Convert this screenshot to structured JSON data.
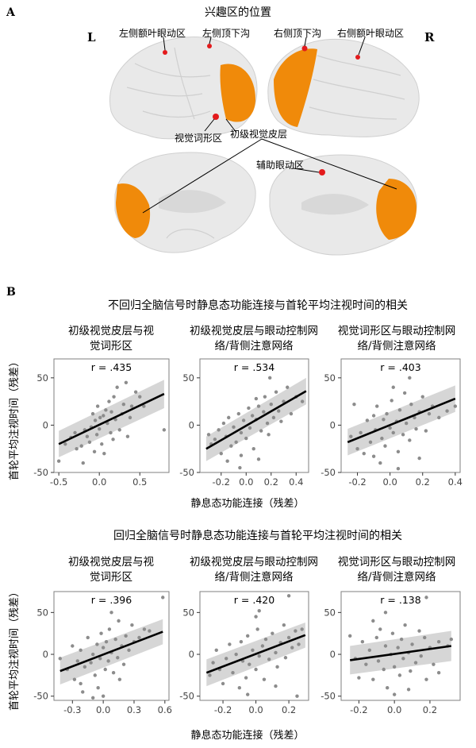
{
  "panel_a": {
    "letter": "A",
    "title": "兴趣区的位置",
    "hemisphere_left": "L",
    "hemisphere_right": "R",
    "labels": {
      "left_fef": "左侧额叶眼动区",
      "left_ips": "左侧顶下沟",
      "right_ips": "右侧顶下沟",
      "right_fef": "右侧额叶眼动区",
      "vwfa": "视觉词形区",
      "v1": "初级视觉皮层",
      "sef": "辅助眼动区"
    },
    "colors": {
      "roi_region": "#f08a0a",
      "roi_point": "#e31a1c",
      "brain": "#e9e9e9"
    }
  },
  "panel_b": {
    "letter": "B",
    "x_axis_label": "静息态功能连接（残差）",
    "y_axis_label": "首轮平均注视时间（残差）",
    "colors": {
      "point": "#8c8c8c",
      "line": "#000000",
      "ribbon": "#cfcfcf"
    }
  },
  "rows": [
    {
      "title": "不回归全脑信号时静息态功能连接与首轮平均注视时间的相关",
      "charts": [
        {
          "title_lines": [
            "初级视觉皮层与视",
            "觉词形区"
          ],
          "r_label": "r = .435"
        },
        {
          "title_lines": [
            "初级视觉皮层与眼动控制网",
            "络/背侧注意网络"
          ],
          "r_label": "r = .534"
        },
        {
          "title_lines": [
            "视觉词形区与眼动控制网",
            "络/背侧注意网络"
          ],
          "r_label": "r = .403"
        }
      ]
    },
    {
      "title": "回归全脑信号时静息态功能连接与首轮平均注视时间的相关",
      "charts": [
        {
          "title_lines": [
            "初级视觉皮层与视",
            "觉词形区"
          ],
          "r_label": "r = .396"
        },
        {
          "title_lines": [
            "初级视觉皮层与眼动控制网",
            "络/背侧注意网络"
          ],
          "r_label": "r = .420"
        },
        {
          "title_lines": [
            "视觉词形区与眼动控制网",
            "络/背侧注意网络"
          ],
          "r_label": "r = .138"
        }
      ]
    }
  ],
  "chart_data": [
    {
      "type": "scatter",
      "title": "初级视觉皮层与视觉词形区",
      "xlabel": "静息态功能连接（残差）",
      "ylabel": "首轮平均注视时间（残差）",
      "xlim": [
        -0.56,
        0.86
      ],
      "ylim": [
        -50,
        70
      ],
      "xticks": [
        -0.5,
        0.0,
        0.5
      ],
      "xtick_labels": [
        "-0.5",
        "0.0",
        "0.5"
      ],
      "yticks": [
        -50,
        0,
        50
      ],
      "ytick_labels": [
        "-50",
        "0",
        "50"
      ],
      "annotation": "r = .435",
      "fit": {
        "x": [
          -0.5,
          0.8
        ],
        "y": [
          -20,
          33
        ],
        "ci_low": [
          -34,
          18
        ],
        "ci_high": [
          -6,
          48
        ]
      },
      "points": [
        [
          -0.5,
          -38
        ],
        [
          -0.42,
          -20
        ],
        [
          -0.35,
          -13
        ],
        [
          -0.3,
          -8
        ],
        [
          -0.28,
          -25
        ],
        [
          -0.22,
          -22
        ],
        [
          -0.2,
          -40
        ],
        [
          -0.18,
          -5
        ],
        [
          -0.15,
          -12
        ],
        [
          -0.12,
          -18
        ],
        [
          -0.1,
          -2
        ],
        [
          -0.08,
          12
        ],
        [
          -0.06,
          -28
        ],
        [
          -0.05,
          5
        ],
        [
          -0.03,
          -10
        ],
        [
          -0.02,
          20
        ],
        [
          0.0,
          -4
        ],
        [
          0.01,
          8
        ],
        [
          0.03,
          -20
        ],
        [
          0.05,
          10
        ],
        [
          0.06,
          -30
        ],
        [
          0.08,
          16
        ],
        [
          0.1,
          2
        ],
        [
          0.12,
          25
        ],
        [
          0.14,
          -8
        ],
        [
          0.15,
          14
        ],
        [
          0.17,
          -15
        ],
        [
          0.18,
          30
        ],
        [
          0.2,
          6
        ],
        [
          0.22,
          40
        ],
        [
          0.25,
          -5
        ],
        [
          0.28,
          12
        ],
        [
          0.3,
          22
        ],
        [
          0.33,
          45
        ],
        [
          0.35,
          -12
        ],
        [
          0.38,
          8
        ],
        [
          0.4,
          20
        ],
        [
          0.45,
          35
        ],
        [
          0.5,
          30
        ],
        [
          0.55,
          20
        ],
        [
          0.8,
          -5
        ]
      ]
    },
    {
      "type": "scatter",
      "title": "初级视觉皮层与眼动控制网络/背侧注意网络",
      "xlabel": "静息态功能连接（残差）",
      "ylabel": "首轮平均注视时间（残差）",
      "xlim": [
        -0.37,
        0.5
      ],
      "ylim": [
        -50,
        70
      ],
      "xticks": [
        -0.2,
        0.0,
        0.2,
        0.4
      ],
      "xtick_labels": [
        "-0.2",
        "0.0",
        "0.2",
        "0.4"
      ],
      "yticks": [
        -50,
        0,
        50
      ],
      "ytick_labels": [
        "-50",
        "0",
        "50"
      ],
      "annotation": "r = .534",
      "fit": {
        "x": [
          -0.32,
          0.48
        ],
        "y": [
          -25,
          36
        ],
        "ci_low": [
          -38,
          22
        ],
        "ci_high": [
          -12,
          50
        ]
      },
      "points": [
        [
          -0.3,
          -10
        ],
        [
          -0.28,
          -20
        ],
        [
          -0.25,
          -15
        ],
        [
          -0.22,
          -5
        ],
        [
          -0.2,
          -30
        ],
        [
          -0.18,
          2
        ],
        [
          -0.16,
          -12
        ],
        [
          -0.14,
          8
        ],
        [
          -0.12,
          -22
        ],
        [
          -0.1,
          -2
        ],
        [
          -0.08,
          -18
        ],
        [
          -0.06,
          12
        ],
        [
          -0.05,
          -45
        ],
        [
          -0.04,
          -8
        ],
        [
          -0.02,
          5
        ],
        [
          0.0,
          -14
        ],
        [
          0.02,
          18
        ],
        [
          0.03,
          -3
        ],
        [
          0.05,
          10
        ],
        [
          0.06,
          -25
        ],
        [
          0.08,
          6
        ],
        [
          0.1,
          20
        ],
        [
          0.12,
          -6
        ],
        [
          0.14,
          14
        ],
        [
          0.15,
          30
        ],
        [
          0.17,
          2
        ],
        [
          0.18,
          -10
        ],
        [
          0.2,
          22
        ],
        [
          0.22,
          8
        ],
        [
          0.24,
          35
        ],
        [
          0.26,
          15
        ],
        [
          0.28,
          4
        ],
        [
          0.3,
          25
        ],
        [
          0.33,
          40
        ],
        [
          0.36,
          12
        ],
        [
          0.4,
          30
        ],
        [
          0.45,
          25
        ],
        [
          -0.04,
          -32
        ],
        [
          0.08,
          28
        ],
        [
          -0.15,
          -38
        ],
        [
          0.1,
          -36
        ],
        [
          0.19,
          50
        ]
      ]
    },
    {
      "type": "scatter",
      "title": "视觉词形区与眼动控制网络/背侧注意网络",
      "xlabel": "静息态功能连接（残差）",
      "ylabel": "首轮平均注视时间（残差）",
      "xlim": [
        -0.3,
        0.43
      ],
      "ylim": [
        -50,
        70
      ],
      "xticks": [
        -0.2,
        0.0,
        0.2,
        0.4
      ],
      "xtick_labels": [
        "-0.2",
        "0.0",
        "0.2",
        "0.4"
      ],
      "yticks": [
        -50,
        0,
        50
      ],
      "ytick_labels": [
        "-50",
        "0",
        "50"
      ],
      "annotation": "r = .403",
      "fit": {
        "x": [
          -0.26,
          0.4
        ],
        "y": [
          -18,
          28
        ],
        "ci_low": [
          -32,
          14
        ],
        "ci_high": [
          -4,
          42
        ]
      },
      "points": [
        [
          -0.24,
          -12
        ],
        [
          -0.22,
          22
        ],
        [
          -0.2,
          -25
        ],
        [
          -0.18,
          -8
        ],
        [
          -0.16,
          -30
        ],
        [
          -0.14,
          5
        ],
        [
          -0.12,
          -18
        ],
        [
          -0.1,
          10
        ],
        [
          -0.09,
          -5
        ],
        [
          -0.08,
          20
        ],
        [
          -0.06,
          -40
        ],
        [
          -0.05,
          -14
        ],
        [
          -0.04,
          6
        ],
        [
          -0.03,
          -22
        ],
        [
          -0.02,
          12
        ],
        [
          0.0,
          -3
        ],
        [
          0.01,
          26
        ],
        [
          0.02,
          -8
        ],
        [
          0.04,
          4
        ],
        [
          0.05,
          -28
        ],
        [
          0.06,
          16
        ],
        [
          0.08,
          -10
        ],
        [
          0.09,
          34
        ],
        [
          0.1,
          2
        ],
        [
          0.12,
          -16
        ],
        [
          0.13,
          22
        ],
        [
          0.15,
          8
        ],
        [
          0.16,
          -4
        ],
        [
          0.18,
          14
        ],
        [
          0.2,
          30
        ],
        [
          0.22,
          -6
        ],
        [
          0.24,
          12
        ],
        [
          0.26,
          20
        ],
        [
          0.3,
          8
        ],
        [
          0.35,
          15
        ],
        [
          0.4,
          20
        ],
        [
          0.05,
          -46
        ],
        [
          -0.1,
          -33
        ],
        [
          0.12,
          50
        ],
        [
          0.02,
          40
        ],
        [
          0.18,
          -35
        ]
      ]
    },
    {
      "type": "scatter",
      "title": "初级视觉皮层与视觉词形区",
      "xlabel": "静息态功能连接（残差）",
      "ylabel": "首轮平均注视时间（残差）",
      "xlim": [
        -0.48,
        0.64
      ],
      "ylim": [
        -55,
        75
      ],
      "xticks": [
        -0.3,
        0.0,
        0.3,
        0.6
      ],
      "xtick_labels": [
        "-0.3",
        "0.0",
        "0.3",
        "0.6"
      ],
      "yticks": [
        -50,
        0,
        50
      ],
      "ytick_labels": [
        "-50",
        "0",
        "50"
      ],
      "annotation": "r = .396",
      "fit": {
        "x": [
          -0.42,
          0.58
        ],
        "y": [
          -20,
          27
        ],
        "ci_low": [
          -36,
          12
        ],
        "ci_high": [
          -4,
          42
        ]
      },
      "points": [
        [
          -0.42,
          -5
        ],
        [
          -0.35,
          -18
        ],
        [
          -0.3,
          10
        ],
        [
          -0.28,
          -30
        ],
        [
          -0.25,
          -8
        ],
        [
          -0.22,
          5
        ],
        [
          -0.2,
          -45
        ],
        [
          -0.18,
          -15
        ],
        [
          -0.15,
          20
        ],
        [
          -0.12,
          -10
        ],
        [
          -0.1,
          0
        ],
        [
          -0.08,
          -25
        ],
        [
          -0.06,
          12
        ],
        [
          -0.05,
          -40
        ],
        [
          -0.03,
          -5
        ],
        [
          -0.02,
          25
        ],
        [
          0.0,
          8
        ],
        [
          0.02,
          -18
        ],
        [
          0.03,
          15
        ],
        [
          0.05,
          -8
        ],
        [
          0.06,
          30
        ],
        [
          0.08,
          2
        ],
        [
          0.1,
          -22
        ],
        [
          0.12,
          18
        ],
        [
          0.14,
          -4
        ],
        [
          0.15,
          40
        ],
        [
          0.18,
          10
        ],
        [
          0.2,
          -12
        ],
        [
          0.22,
          22
        ],
        [
          0.25,
          5
        ],
        [
          0.28,
          35
        ],
        [
          0.3,
          15
        ],
        [
          0.35,
          20
        ],
        [
          0.4,
          30
        ],
        [
          0.45,
          28
        ],
        [
          0.58,
          68
        ],
        [
          -0.1,
          -52
        ],
        [
          0.0,
          -50
        ],
        [
          0.08,
          50
        ],
        [
          -0.22,
          -35
        ],
        [
          0.16,
          -30
        ]
      ]
    },
    {
      "type": "scatter",
      "title": "初级视觉皮层与眼动控制网络/背侧注意网络",
      "xlabel": "静息态功能连接（残差）",
      "ylabel": "首轮平均注视时间（残差）",
      "xlim": [
        -0.34,
        0.32
      ],
      "ylim": [
        -55,
        75
      ],
      "xticks": [
        -0.2,
        0.0,
        0.2
      ],
      "xtick_labels": [
        "-0.2",
        "0.0",
        "0.2"
      ],
      "yticks": [
        -50,
        0,
        50
      ],
      "ytick_labels": [
        "-50",
        "0",
        "50"
      ],
      "annotation": "r = .420",
      "fit": {
        "x": [
          -0.3,
          0.3
        ],
        "y": [
          -22,
          23
        ],
        "ci_low": [
          -38,
          8
        ],
        "ci_high": [
          -6,
          38
        ]
      },
      "points": [
        [
          -0.28,
          -25
        ],
        [
          -0.26,
          -10
        ],
        [
          -0.24,
          5
        ],
        [
          -0.22,
          -18
        ],
        [
          -0.2,
          -35
        ],
        [
          -0.18,
          -5
        ],
        [
          -0.16,
          12
        ],
        [
          -0.14,
          -22
        ],
        [
          -0.12,
          0
        ],
        [
          -0.1,
          -40
        ],
        [
          -0.09,
          15
        ],
        [
          -0.08,
          -8
        ],
        [
          -0.06,
          -28
        ],
        [
          -0.05,
          22
        ],
        [
          -0.04,
          -12
        ],
        [
          -0.02,
          5
        ],
        [
          0.0,
          -18
        ],
        [
          0.01,
          30
        ],
        [
          0.02,
          -2
        ],
        [
          0.04,
          10
        ],
        [
          0.05,
          -30
        ],
        [
          0.06,
          18
        ],
        [
          0.08,
          -6
        ],
        [
          0.1,
          25
        ],
        [
          0.12,
          2
        ],
        [
          0.13,
          -15
        ],
        [
          0.15,
          14
        ],
        [
          0.17,
          35
        ],
        [
          0.18,
          -4
        ],
        [
          0.2,
          20
        ],
        [
          0.22,
          8
        ],
        [
          0.24,
          28
        ],
        [
          0.26,
          12
        ],
        [
          0.28,
          30
        ],
        [
          0.0,
          45
        ],
        [
          0.02,
          52
        ],
        [
          0.2,
          70
        ],
        [
          0.25,
          -50
        ],
        [
          -0.05,
          -48
        ],
        [
          0.12,
          -38
        ]
      ]
    },
    {
      "type": "scatter",
      "title": "视觉词形区与眼动控制网络/背侧注意网络",
      "xlabel": "静息态功能连接（残差）",
      "ylabel": "首轮平均注视时间（残差）",
      "xlim": [
        -0.3,
        0.37
      ],
      "ylim": [
        -55,
        75
      ],
      "xticks": [
        -0.2,
        0.0,
        0.2
      ],
      "xtick_labels": [
        "-0.2",
        "0.0",
        "0.2"
      ],
      "yticks": [
        -50,
        0,
        50
      ],
      "ytick_labels": [
        "-50",
        "0",
        "50"
      ],
      "annotation": "r = .138",
      "fit": {
        "x": [
          -0.25,
          0.32
        ],
        "y": [
          -7,
          10
        ],
        "ci_low": [
          -24,
          -8
        ],
        "ci_high": [
          10,
          28
        ]
      },
      "points": [
        [
          -0.25,
          22
        ],
        [
          -0.22,
          -5
        ],
        [
          -0.2,
          -28
        ],
        [
          -0.18,
          15
        ],
        [
          -0.16,
          -12
        ],
        [
          -0.14,
          5
        ],
        [
          -0.12,
          -30
        ],
        [
          -0.1,
          20
        ],
        [
          -0.09,
          -8
        ],
        [
          -0.08,
          30
        ],
        [
          -0.06,
          -18
        ],
        [
          -0.05,
          10
        ],
        [
          -0.04,
          -40
        ],
        [
          -0.02,
          0
        ],
        [
          -0.01,
          25
        ],
        [
          0.0,
          -15
        ],
        [
          0.02,
          8
        ],
        [
          0.03,
          -25
        ],
        [
          0.04,
          18
        ],
        [
          0.05,
          -5
        ],
        [
          0.06,
          35
        ],
        [
          0.08,
          2
        ],
        [
          0.09,
          -20
        ],
        [
          0.1,
          12
        ],
        [
          0.12,
          -10
        ],
        [
          0.14,
          28
        ],
        [
          0.15,
          -2
        ],
        [
          0.17,
          20
        ],
        [
          0.18,
          -30
        ],
        [
          0.2,
          8
        ],
        [
          0.22,
          -12
        ],
        [
          0.25,
          15
        ],
        [
          0.3,
          10
        ],
        [
          0.32,
          18
        ],
        [
          -0.05,
          50
        ],
        [
          0.18,
          68
        ],
        [
          0.0,
          -48
        ],
        [
          -0.12,
          40
        ],
        [
          0.08,
          -42
        ],
        [
          0.25,
          -22
        ]
      ]
    }
  ]
}
